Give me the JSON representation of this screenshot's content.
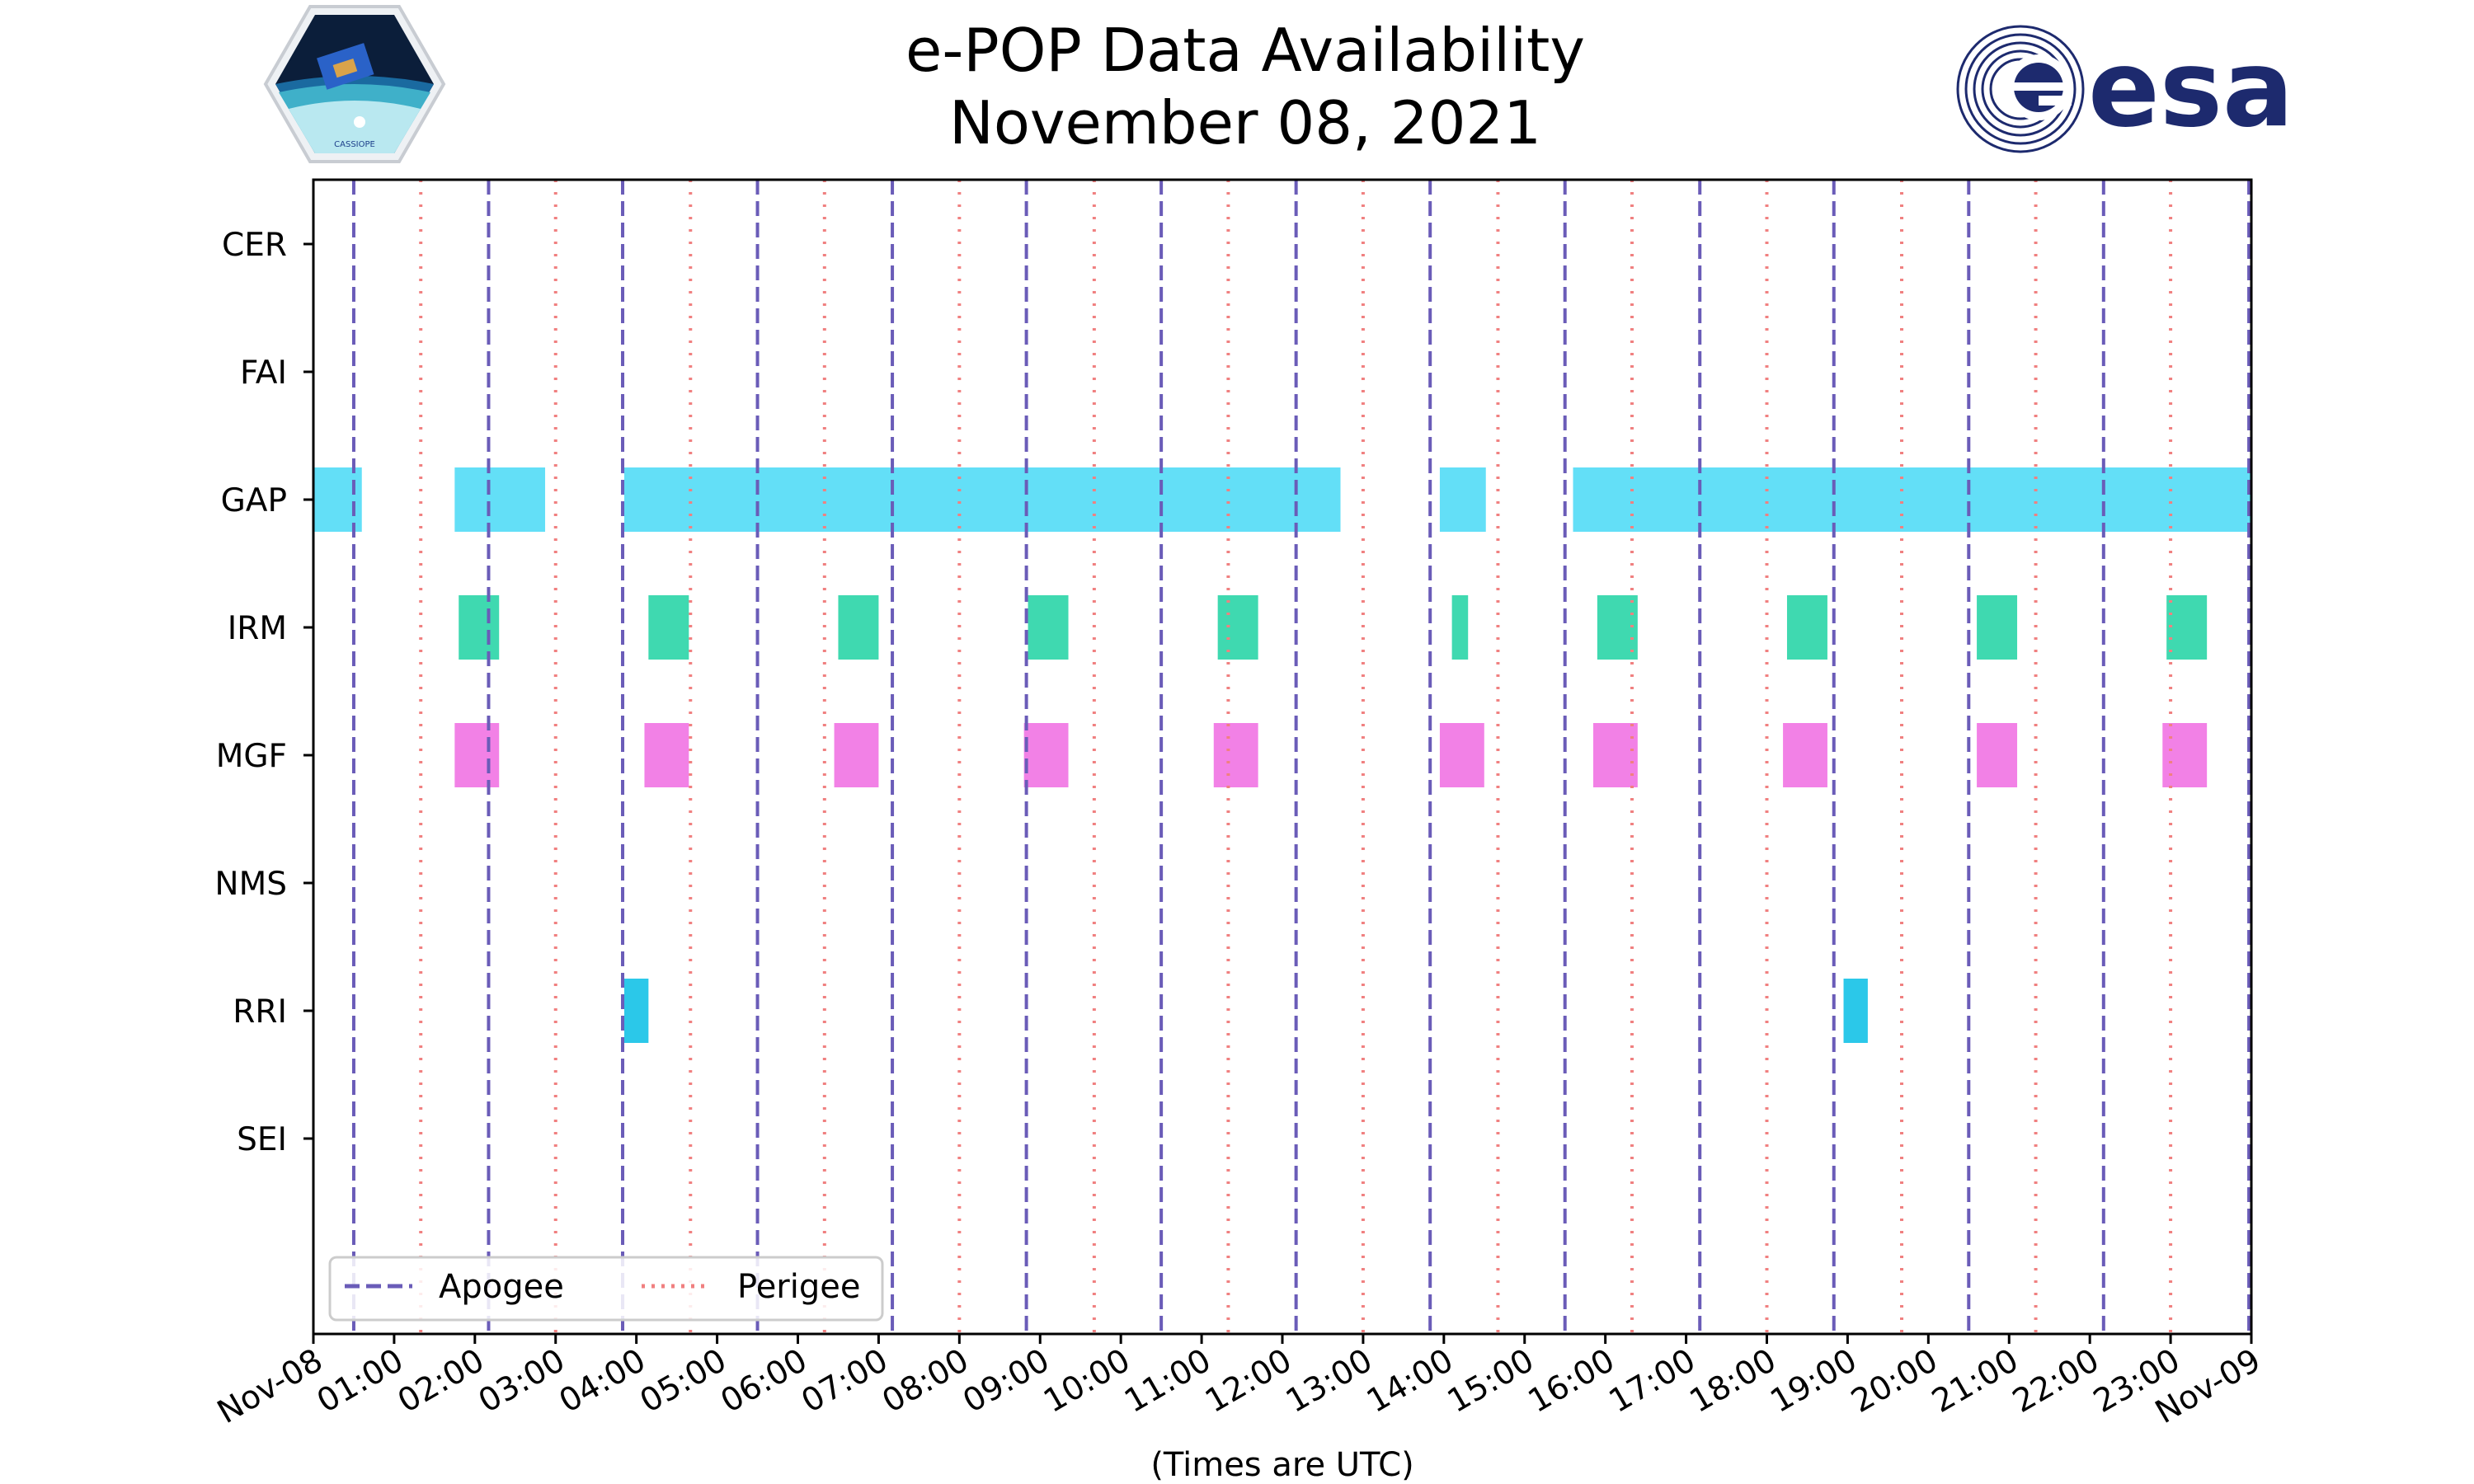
{
  "header": {
    "cassiope_logo_text": "CASSIOPE",
    "esa_logo_text": "esa"
  },
  "chart_data": {
    "type": "timeline",
    "title": "e-POP Data Availability",
    "subtitle": "November 08, 2021",
    "xlabel": "(Times are UTC)",
    "xlim_hours": [
      0,
      24
    ],
    "x_tick_labels": [
      "Nov-08",
      "01:00",
      "02:00",
      "03:00",
      "04:00",
      "05:00",
      "06:00",
      "07:00",
      "08:00",
      "09:00",
      "10:00",
      "11:00",
      "12:00",
      "13:00",
      "14:00",
      "15:00",
      "16:00",
      "17:00",
      "18:00",
      "19:00",
      "20:00",
      "21:00",
      "22:00",
      "23:00",
      "Nov-09"
    ],
    "categories": [
      "CER",
      "FAI",
      "GAP",
      "IRM",
      "MGF",
      "NMS",
      "RRI",
      "SEI"
    ],
    "series": [
      {
        "name": "CER",
        "color": "#63dff7",
        "intervals": []
      },
      {
        "name": "FAI",
        "color": "#63dff7",
        "intervals": []
      },
      {
        "name": "GAP",
        "color": "#63dff7",
        "intervals": [
          [
            0.0,
            0.6
          ],
          [
            1.75,
            2.87
          ],
          [
            3.85,
            12.72
          ],
          [
            13.95,
            14.52
          ],
          [
            15.6,
            24.0
          ]
        ]
      },
      {
        "name": "IRM",
        "color": "#3fd9b0",
        "intervals": [
          [
            1.8,
            2.3
          ],
          [
            4.15,
            4.65
          ],
          [
            6.5,
            7.0
          ],
          [
            8.85,
            9.35
          ],
          [
            11.2,
            11.7
          ],
          [
            14.1,
            14.3
          ],
          [
            15.9,
            16.4
          ],
          [
            18.25,
            18.75
          ],
          [
            20.6,
            21.1
          ],
          [
            22.95,
            23.45
          ]
        ]
      },
      {
        "name": "MGF",
        "color": "#f281e6",
        "intervals": [
          [
            1.75,
            2.3
          ],
          [
            4.1,
            4.65
          ],
          [
            6.45,
            7.0
          ],
          [
            8.8,
            9.35
          ],
          [
            11.15,
            11.7
          ],
          [
            13.95,
            14.5
          ],
          [
            15.85,
            16.4
          ],
          [
            18.2,
            18.75
          ],
          [
            20.6,
            21.1
          ],
          [
            22.9,
            23.45
          ]
        ]
      },
      {
        "name": "NMS",
        "color": "#2bc8e9",
        "intervals": []
      },
      {
        "name": "RRI",
        "color": "#2bc8e9",
        "intervals": [
          [
            3.85,
            4.15
          ],
          [
            18.95,
            19.25
          ]
        ]
      },
      {
        "name": "SEI",
        "color": "#2bc8e9",
        "intervals": []
      }
    ],
    "apogee_hours": [
      0.5,
      2.17,
      3.83,
      5.5,
      7.17,
      8.83,
      10.5,
      12.17,
      13.83,
      15.5,
      17.17,
      18.83,
      20.5,
      22.17,
      23.97
    ],
    "perigee_hours": [
      1.33,
      3.0,
      4.67,
      6.33,
      8.0,
      9.67,
      11.33,
      13.0,
      14.67,
      16.33,
      18.0,
      19.67,
      21.33,
      23.0
    ],
    "legend": {
      "position": "lower-left",
      "entries": [
        {
          "label": "Apogee",
          "style": "dashed",
          "color": "#6a5cb8"
        },
        {
          "label": "Perigee",
          "style": "dotted",
          "color": "#f08080"
        }
      ]
    }
  }
}
